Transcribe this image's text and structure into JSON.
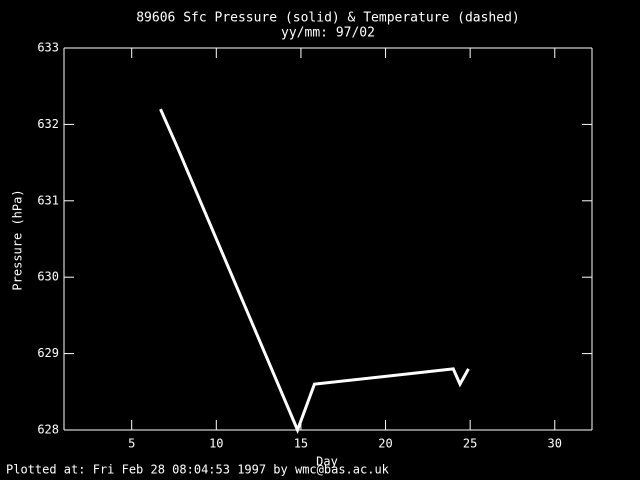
{
  "chart_data": {
    "type": "line",
    "title": "89606 Sfc Pressure (solid) & Temperature (dashed)",
    "subtitle": "yy/mm: 97/02",
    "x_label": "Day",
    "y_label": "Pressure (hPa)",
    "footer": "Plotted at: Fri Feb 28 08:04:53 1997 by wmc@bas.ac.uk",
    "x": [
      6.7,
      7.7,
      14.8,
      15.8,
      24.0,
      24.4,
      24.9
    ],
    "values": [
      632.2,
      631.7,
      628.0,
      628.6,
      628.8,
      628.6,
      628.8
    ],
    "color": "#ffffff",
    "xlim": [
      1,
      32.2
    ],
    "xticks": [
      5,
      10,
      15,
      20,
      25,
      30
    ],
    "ylim": [
      628,
      633
    ],
    "yticks": [
      628,
      629,
      630,
      631,
      632,
      633
    ]
  }
}
